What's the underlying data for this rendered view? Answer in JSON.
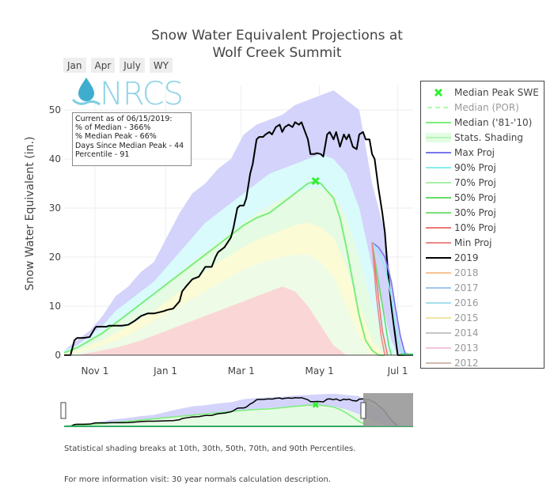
{
  "title_line1": "Snow Water Equivalent Projections at",
  "title_line2": "Wolf Creek Summit",
  "range_buttons": [
    "Jan",
    "Apr",
    "July",
    "WY"
  ],
  "logo_text": "NRCS",
  "info_box": {
    "line1": "Current as of 06/15/2019:",
    "line2": "% of Median - 366%",
    "line3": "% Median Peak - 66%",
    "line4": "Days Since Median Peak - 44",
    "line5": "Percentile - 91"
  },
  "footnote1": "Statistical shading breaks at 10th, 30th, 50th, 70th, and 90th Percentiles.",
  "footnote2": "For more information visit: 30 year normals calculation description.",
  "legend": [
    {
      "label": "Median Peak SWE",
      "color": "#33ee33",
      "kind": "marker",
      "visible": true
    },
    {
      "label": "Median (POR)",
      "color": "#aaffaa",
      "kind": "dash",
      "visible": false
    },
    {
      "label": "Median ('81-'10)",
      "color": "#7bee7b",
      "kind": "line",
      "visible": true
    },
    {
      "label": "Stats. Shading",
      "color": "#e3fde3",
      "kind": "fill",
      "visible": true
    },
    {
      "label": "Max Proj",
      "color": "#7777ee",
      "kind": "line",
      "visible": true
    },
    {
      "label": "90% Proj",
      "color": "#88eeee",
      "kind": "line",
      "visible": true
    },
    {
      "label": "70% Proj",
      "color": "#aaf0aa",
      "kind": "line",
      "visible": true
    },
    {
      "label": "50% Proj",
      "color": "#66dd66",
      "kind": "line",
      "visible": true
    },
    {
      "label": "30% Proj",
      "color": "#77e077",
      "kind": "line",
      "visible": true
    },
    {
      "label": "10% Proj",
      "color": "#ee7777",
      "kind": "line",
      "visible": true
    },
    {
      "label": "Min Proj",
      "color": "#ee8888",
      "kind": "line",
      "visible": true
    },
    {
      "label": "2019",
      "color": "#000000",
      "kind": "line",
      "visible": true
    },
    {
      "label": "2018",
      "color": "#f5b37a",
      "kind": "line",
      "visible": false
    },
    {
      "label": "2017",
      "color": "#8ab8e8",
      "kind": "line",
      "visible": false
    },
    {
      "label": "2016",
      "color": "#8fd6e8",
      "kind": "line",
      "visible": false
    },
    {
      "label": "2015",
      "color": "#e8e08a",
      "kind": "line",
      "visible": false
    },
    {
      "label": "2014",
      "color": "#b8b8b8",
      "kind": "line",
      "visible": false
    },
    {
      "label": "2013",
      "color": "#f0b8d8",
      "kind": "line",
      "visible": false
    },
    {
      "label": "2012",
      "color": "#c8a898",
      "kind": "line",
      "visible": false
    }
  ],
  "chart_data": {
    "type": "area",
    "title": "Snow Water Equivalent Projections at Wolf Creek Summit",
    "xlabel": "",
    "ylabel": "Snow Water Equivalent (in.)",
    "xlim_days": [
      0,
      272
    ],
    "ylim": [
      0,
      55
    ],
    "x_ticks": [
      {
        "day": 24,
        "label": "Nov 1"
      },
      {
        "day": 79,
        "label": "Jan 1"
      },
      {
        "day": 138,
        "label": "Mar 1"
      },
      {
        "day": 199,
        "label": "May 1"
      },
      {
        "day": 260,
        "label": "Jul 1"
      }
    ],
    "y_ticks": [
      0,
      10,
      20,
      30,
      40,
      50
    ],
    "x_days": [
      0,
      10,
      20,
      30,
      40,
      50,
      60,
      70,
      80,
      90,
      100,
      110,
      120,
      130,
      140,
      150,
      160,
      170,
      180,
      190,
      200,
      210,
      220,
      230,
      240,
      250,
      255,
      260,
      265,
      270
    ],
    "bands": [
      {
        "name": "Max",
        "color": "#d3d3fb",
        "values": [
          1,
          3,
          5,
          8,
          12,
          14,
          17,
          19,
          24,
          29,
          33,
          35,
          38,
          40,
          45,
          47,
          48,
          49,
          51,
          52,
          53,
          54,
          52,
          50,
          35,
          25,
          15,
          7,
          1,
          0
        ]
      },
      {
        "name": "90th",
        "color": "#d9fbfb",
        "values": [
          1,
          2,
          4,
          6,
          9,
          11,
          13,
          15,
          18,
          21,
          24,
          27,
          29,
          31,
          33,
          35,
          37,
          38,
          39,
          40,
          41,
          40,
          37,
          30,
          18,
          8,
          3,
          0,
          0,
          0
        ]
      },
      {
        "name": "70th",
        "color": "#e6fbe3",
        "values": [
          0.5,
          1.5,
          3,
          4.5,
          6.5,
          8,
          10,
          12,
          14.5,
          17,
          19,
          21,
          23,
          25,
          27,
          29,
          30.5,
          32,
          33,
          34,
          34,
          33,
          28,
          20,
          10,
          2,
          0,
          0,
          0,
          0
        ]
      },
      {
        "name": "50th",
        "color": "#fbfbd6",
        "values": [
          0.3,
          1,
          2,
          3,
          4.5,
          6,
          7.5,
          9,
          11,
          13,
          15,
          17,
          19,
          20.5,
          22,
          23.5,
          24.5,
          25.5,
          26.5,
          27,
          26,
          24,
          18,
          10,
          3,
          0,
          0,
          0,
          0,
          0
        ]
      },
      {
        "name": "30th",
        "color": "#eefbe6",
        "values": [
          0,
          0.5,
          1.2,
          2,
          3,
          4,
          5.5,
          7,
          8.5,
          10,
          11.5,
          13,
          14.5,
          16,
          17.5,
          18.5,
          19.5,
          20,
          20.5,
          20.5,
          19,
          16,
          10,
          4,
          0,
          0,
          0,
          0,
          0,
          0
        ]
      },
      {
        "name": "10th",
        "color": "#fbd6d6",
        "values": [
          0,
          0,
          0.5,
          1,
          1.5,
          2.2,
          3,
          4,
          5,
          6,
          7,
          8,
          9,
          10,
          11,
          12,
          13,
          14,
          13,
          10,
          6,
          2,
          0,
          0,
          0,
          0,
          0,
          0,
          0,
          0
        ]
      }
    ],
    "series": [
      {
        "name": "Median ('81-'10)",
        "color": "#7bee7b",
        "x": [
          0,
          10,
          20,
          30,
          40,
          50,
          60,
          70,
          80,
          90,
          100,
          110,
          120,
          130,
          140,
          150,
          160,
          170,
          180,
          190,
          196,
          200,
          210,
          215,
          220,
          225,
          230,
          235,
          240,
          245,
          250
        ],
        "values": [
          0.5,
          1.5,
          3,
          4.5,
          6.5,
          8.5,
          10.5,
          12.5,
          14.5,
          16.5,
          18.5,
          20.5,
          22.5,
          24.5,
          26.5,
          28,
          29,
          31,
          33,
          35,
          35.5,
          35,
          32,
          28,
          22,
          15,
          8,
          3,
          1,
          0,
          0
        ]
      },
      {
        "name": "2019",
        "color": "#000000",
        "x": [
          0,
          5,
          8,
          10,
          15,
          20,
          24,
          25,
          30,
          33,
          35,
          40,
          45,
          50,
          55,
          60,
          65,
          70,
          75,
          78,
          80,
          85,
          90,
          92,
          95,
          100,
          105,
          110,
          115,
          118,
          120,
          125,
          130,
          132,
          135,
          137,
          140,
          142,
          145,
          147,
          150,
          152,
          155,
          157,
          160,
          162,
          165,
          168,
          170,
          172,
          175,
          178,
          180,
          183,
          185,
          190,
          192,
          195,
          197,
          200,
          202,
          205,
          207,
          210,
          212,
          215,
          218,
          220,
          222,
          225,
          228,
          230,
          233,
          235,
          238,
          240,
          242,
          245,
          248,
          250,
          252,
          255,
          258,
          260,
          265,
          272
        ],
        "values": [
          0,
          0,
          3,
          3.5,
          3.5,
          3.7,
          5.5,
          5.8,
          5.8,
          5.8,
          6,
          6,
          6,
          6.2,
          7,
          8,
          8.5,
          8.5,
          8.8,
          9,
          9.2,
          9.5,
          11,
          13,
          14,
          15.5,
          16,
          18,
          18,
          20,
          21,
          22,
          24,
          26,
          30,
          30.5,
          30.5,
          32,
          37,
          39,
          44,
          44.5,
          44.5,
          45,
          45.5,
          45,
          46.5,
          47,
          45.5,
          46.5,
          47,
          46.5,
          47.5,
          47,
          47.5,
          44,
          41,
          41,
          41.2,
          41,
          40.5,
          45,
          45.5,
          44,
          45.5,
          42.5,
          45,
          44,
          45,
          42.5,
          42,
          45,
          45.5,
          44,
          44,
          41,
          40,
          34,
          29,
          25,
          18,
          10,
          4,
          0,
          0,
          0
        ]
      },
      {
        "name": "Max Proj",
        "color": "#7777ee",
        "x": [
          240,
          245,
          250,
          255,
          258,
          262,
          266,
          272
        ],
        "values": [
          23,
          22,
          20,
          15,
          10,
          4,
          0,
          0
        ]
      },
      {
        "name": "90% Proj",
        "color": "#88eeee",
        "x": [
          240,
          245,
          250,
          255,
          258,
          262,
          266
        ],
        "values": [
          23,
          21,
          18,
          12,
          6,
          1,
          0
        ]
      },
      {
        "name": "50% Proj",
        "color": "#66dd66",
        "x": [
          240,
          245,
          250,
          253,
          255
        ],
        "values": [
          23,
          15,
          7,
          2,
          0
        ]
      },
      {
        "name": "10% Proj",
        "color": "#ee7777",
        "x": [
          240,
          244,
          248,
          252
        ],
        "values": [
          23,
          14,
          5,
          0
        ]
      },
      {
        "name": "Min Proj",
        "color": "#ee8888",
        "x": [
          240,
          243,
          247,
          250
        ],
        "values": [
          23,
          13,
          4,
          0
        ]
      }
    ],
    "markers": [
      {
        "name": "Median Peak SWE",
        "x": 196,
        "y": 35.5,
        "color": "#33ee33"
      }
    ]
  }
}
